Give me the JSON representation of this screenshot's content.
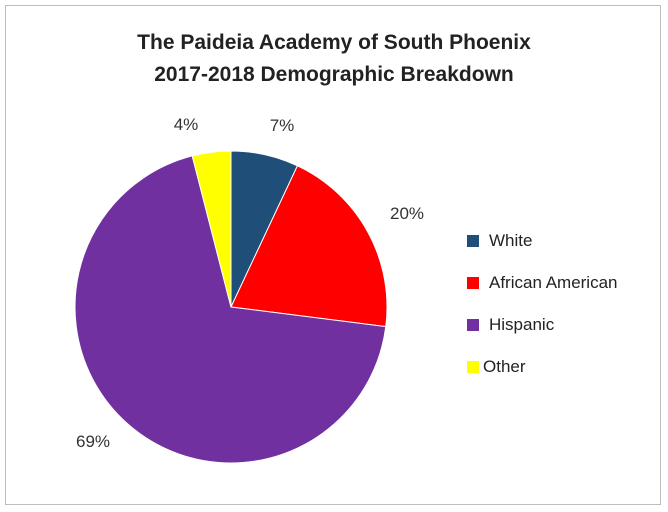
{
  "chart_data": {
    "type": "pie",
    "title": [
      "The Paideia Academy of South Phoenix",
      "2017-2018 Demographic Breakdown"
    ],
    "categories": [
      "White",
      "African American",
      "Hispanic",
      "Other"
    ],
    "values": [
      7,
      20,
      69,
      4
    ],
    "labels": [
      "7%",
      "20%",
      "69%",
      "4%"
    ],
    "colors": [
      "#1f4e79",
      "#ff0000",
      "#7030a0",
      "#ffff00"
    ],
    "legend_position": "right"
  }
}
